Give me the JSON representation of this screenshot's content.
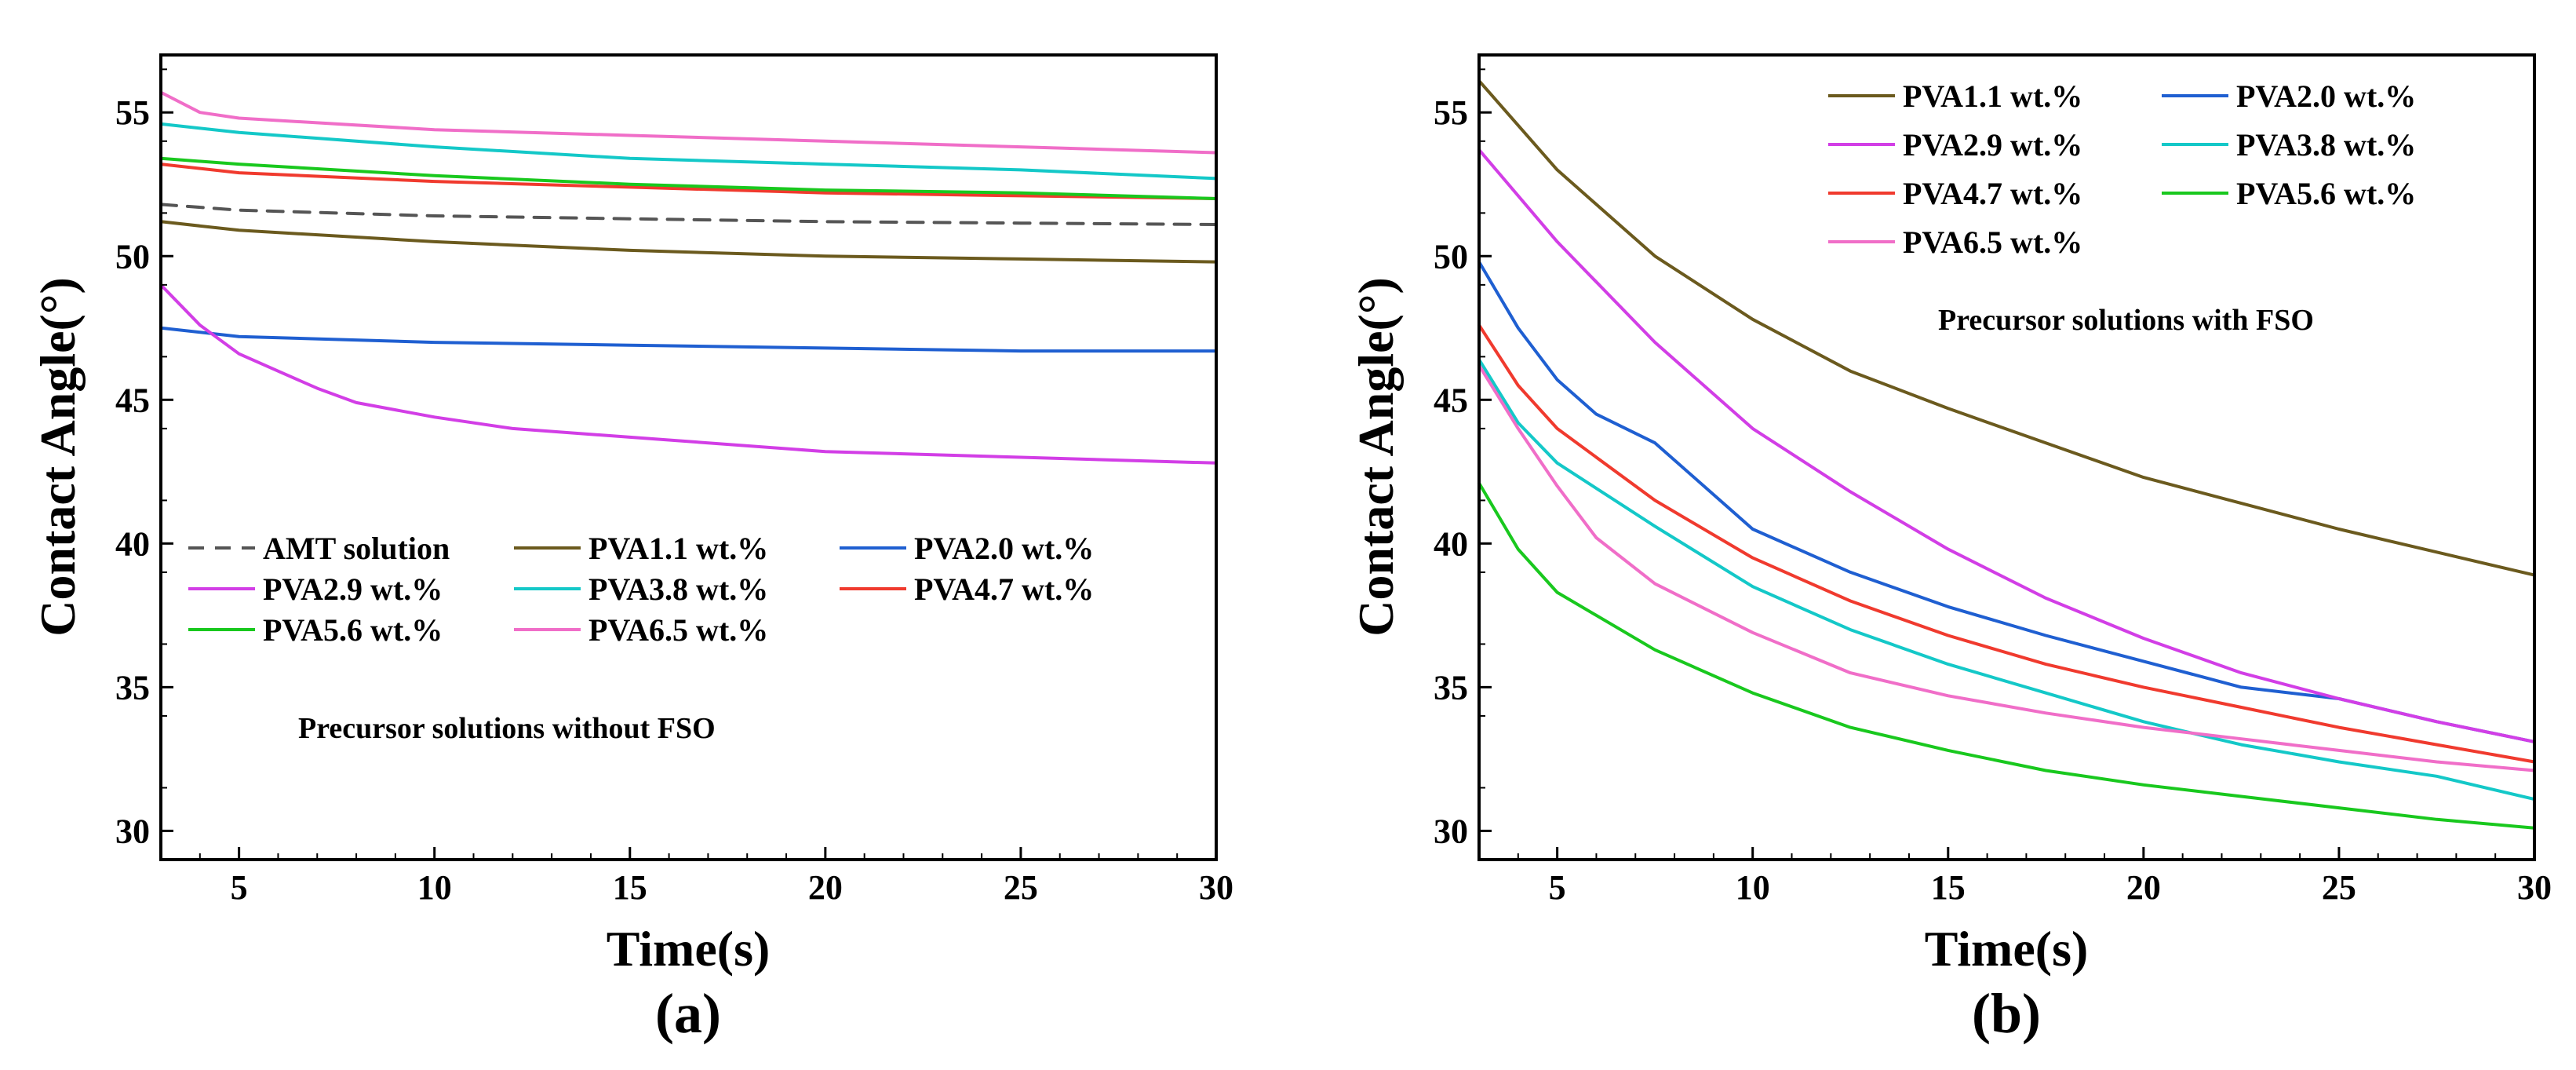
{
  "chart_data": [
    {
      "type": "line",
      "panel_label": "(a)",
      "xlabel": "Time(s)",
      "ylabel": "Contact Angle(°)",
      "xlim": [
        3,
        30
      ],
      "ylim": [
        29,
        57
      ],
      "xticks": [
        5,
        10,
        15,
        20,
        25,
        30
      ],
      "yticks": [
        30,
        35,
        40,
        45,
        50,
        55
      ],
      "grid": false,
      "legend_position": "bottom-left",
      "note": "Precursor solutions without FSO",
      "series": [
        {
          "name": "AMT solution",
          "color": "#555555",
          "dashed": true,
          "x": [
            3,
            5,
            10,
            15,
            20,
            25,
            30
          ],
          "y": [
            51.8,
            51.6,
            51.4,
            51.3,
            51.2,
            51.15,
            51.1
          ]
        },
        {
          "name": "PVA1.1 wt.%",
          "color": "#6b5a1e",
          "x": [
            3,
            5,
            10,
            15,
            20,
            25,
            30
          ],
          "y": [
            51.2,
            50.9,
            50.5,
            50.2,
            50.0,
            49.9,
            49.8
          ]
        },
        {
          "name": "PVA2.0 wt.%",
          "color": "#1f5fd1",
          "x": [
            3,
            5,
            10,
            15,
            20,
            25,
            30
          ],
          "y": [
            47.5,
            47.2,
            47.0,
            46.9,
            46.8,
            46.7,
            46.7
          ]
        },
        {
          "name": "PVA2.9 wt.%",
          "color": "#d23ee6",
          "x": [
            3,
            4,
            5,
            6,
            7,
            8,
            10,
            12,
            15,
            20,
            25,
            30
          ],
          "y": [
            49.0,
            47.6,
            46.6,
            46.0,
            45.4,
            44.9,
            44.4,
            44.0,
            43.7,
            43.2,
            43.0,
            42.8
          ]
        },
        {
          "name": "PVA3.8 wt.%",
          "color": "#14c8c8",
          "x": [
            3,
            5,
            10,
            15,
            20,
            25,
            30
          ],
          "y": [
            54.6,
            54.3,
            53.8,
            53.4,
            53.2,
            53.0,
            52.7
          ]
        },
        {
          "name": "PVA4.7 wt.%",
          "color": "#f03a2e",
          "x": [
            3,
            5,
            10,
            15,
            20,
            25,
            30
          ],
          "y": [
            53.2,
            52.9,
            52.6,
            52.4,
            52.2,
            52.1,
            52.0
          ]
        },
        {
          "name": "PVA5.6 wt.%",
          "color": "#19c81e",
          "x": [
            3,
            5,
            10,
            15,
            20,
            25,
            30
          ],
          "y": [
            53.4,
            53.2,
            52.8,
            52.5,
            52.3,
            52.2,
            52.0
          ]
        },
        {
          "name": "PVA6.5 wt.%",
          "color": "#f06ec8",
          "x": [
            3,
            4,
            5,
            10,
            15,
            20,
            25,
            30
          ],
          "y": [
            55.7,
            55.0,
            54.8,
            54.4,
            54.2,
            54.0,
            53.8,
            53.6
          ]
        }
      ]
    },
    {
      "type": "line",
      "panel_label": "(b)",
      "xlabel": "Time(s)",
      "ylabel": "Contact Angle(°)",
      "xlim": [
        3,
        30
      ],
      "ylim": [
        29,
        57
      ],
      "xticks": [
        5,
        10,
        15,
        20,
        25,
        30
      ],
      "yticks": [
        30,
        35,
        40,
        45,
        50,
        55
      ],
      "grid": false,
      "legend_position": "top-right",
      "note": "Precursor solutions with FSO",
      "series": [
        {
          "name": "PVA1.1 wt.%",
          "color": "#6b5a1e",
          "x": [
            3,
            5,
            7.5,
            10,
            12.5,
            15,
            17.5,
            20,
            22.5,
            25,
            27.5,
            30
          ],
          "y": [
            56.1,
            53.0,
            50.0,
            47.8,
            46.0,
            44.7,
            43.5,
            42.3,
            41.4,
            40.5,
            39.7,
            38.9
          ]
        },
        {
          "name": "PVA2.0 wt.%",
          "color": "#1f5fd1",
          "x": [
            3,
            4,
            5,
            6,
            7.5,
            10,
            12.5,
            15,
            17.5,
            20,
            22.5,
            25,
            27.5,
            30
          ],
          "y": [
            49.8,
            47.5,
            45.7,
            44.5,
            43.5,
            40.5,
            39.0,
            37.8,
            36.8,
            35.9,
            35.0,
            34.6,
            33.8,
            33.1
          ]
        },
        {
          "name": "PVA2.9 wt.%",
          "color": "#d23ee6",
          "x": [
            3,
            5,
            7.5,
            10,
            12.5,
            15,
            17.5,
            20,
            22.5,
            25,
            27.5,
            30
          ],
          "y": [
            53.7,
            50.5,
            47.0,
            44.0,
            41.8,
            39.8,
            38.1,
            36.7,
            35.5,
            34.6,
            33.8,
            33.1
          ]
        },
        {
          "name": "PVA3.8 wt.%",
          "color": "#14c8c8",
          "x": [
            3,
            4,
            5,
            7.5,
            10,
            12.5,
            15,
            17.5,
            20,
            22.5,
            25,
            27.5,
            30
          ],
          "y": [
            46.4,
            44.2,
            42.8,
            40.6,
            38.5,
            37.0,
            35.8,
            34.8,
            33.8,
            33.0,
            32.4,
            31.9,
            31.1
          ]
        },
        {
          "name": "PVA4.7 wt.%",
          "color": "#f03a2e",
          "x": [
            3,
            4,
            5,
            7.5,
            10,
            12.5,
            15,
            17.5,
            20,
            22.5,
            25,
            27.5,
            30
          ],
          "y": [
            47.6,
            45.5,
            44.0,
            41.5,
            39.5,
            38.0,
            36.8,
            35.8,
            35.0,
            34.3,
            33.6,
            33.0,
            32.4
          ]
        },
        {
          "name": "PVA5.6 wt.%",
          "color": "#19c81e",
          "x": [
            3,
            4,
            5,
            7.5,
            10,
            12.5,
            15,
            17.5,
            20,
            22.5,
            25,
            27.5,
            30
          ],
          "y": [
            42.1,
            39.8,
            38.3,
            36.3,
            34.8,
            33.6,
            32.8,
            32.1,
            31.6,
            31.2,
            30.8,
            30.4,
            30.1
          ]
        },
        {
          "name": "PVA6.5 wt.%",
          "color": "#f06ec8",
          "x": [
            3,
            4,
            5,
            6,
            7.5,
            10,
            12.5,
            15,
            17.5,
            20,
            22.5,
            25,
            27.5,
            30
          ],
          "y": [
            46.2,
            44.0,
            42.0,
            40.2,
            38.6,
            36.9,
            35.5,
            34.7,
            34.1,
            33.6,
            33.2,
            32.8,
            32.4,
            32.1
          ]
        }
      ]
    }
  ]
}
